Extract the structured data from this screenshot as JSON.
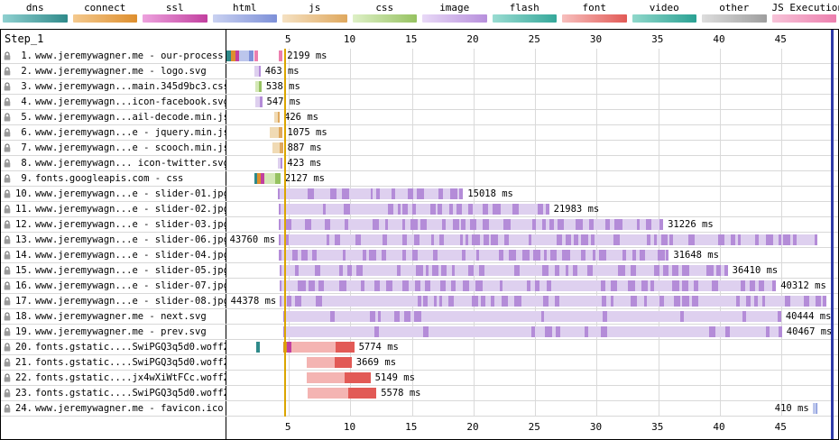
{
  "legend": {
    "items": [
      {
        "label": "dns",
        "light": "#8fd0d0",
        "dark": "#2f8a8a"
      },
      {
        "label": "connect",
        "light": "#f4c98e",
        "dark": "#de8f2e"
      },
      {
        "label": "ssl",
        "light": "#eda2de",
        "dark": "#c2409f"
      },
      {
        "label": "html",
        "light": "#c9d1f1",
        "dark": "#7d90d8"
      },
      {
        "label": "js",
        "light": "#f5e1c2",
        "dark": "#dfa85e"
      },
      {
        "label": "css",
        "light": "#def0c6",
        "dark": "#96c261"
      },
      {
        "label": "image",
        "light": "#e8d9f7",
        "dark": "#b78fdc"
      },
      {
        "label": "flash",
        "light": "#9adcd2",
        "dark": "#35a89a"
      },
      {
        "label": "font",
        "light": "#f7bfbd",
        "dark": "#e25a56"
      },
      {
        "label": "video",
        "light": "#90d8cb",
        "dark": "#2aa193"
      },
      {
        "label": "other",
        "light": "#dddddd",
        "dark": "#9e9e9e"
      },
      {
        "label": "JS Execution",
        "light": "#f7c3d8",
        "dark": "#ec7fae"
      }
    ]
  },
  "palette": {
    "dns": "#2f8a8a",
    "conn": "#de8f2e",
    "ssl": "#c2409f",
    "htmlL": "#bcc6ec",
    "htmlD": "#7d90d8",
    "jsL": "#f0dab4",
    "jsD": "#dfa85e",
    "cssL": "#d4e8b6",
    "cssD": "#96c261",
    "imgL": "#ded0ef",
    "imgD": "#b48cd8",
    "fontL": "#f4b4b2",
    "fontD": "#e25a56",
    "exec": "#ec7fae",
    "grid": "#dadada",
    "marker_gold": "#dba500",
    "marker_blue": "#2f3ba8"
  },
  "chart": {
    "step_label": "Step_1",
    "axis_ticks": [
      5,
      10,
      15,
      20,
      25,
      30,
      35,
      40,
      45
    ],
    "time_max_ms": 49600,
    "markers": [
      {
        "name": "start-render",
        "t_ms": 4600,
        "color": "#dba500",
        "w": 2
      },
      {
        "name": "document-complete",
        "t_ms": 49050,
        "color": "#2f3ba8",
        "w": 3
      }
    ]
  },
  "requests": [
    {
      "num": "1.",
      "label": "www.jeremywagner.me - our-process",
      "time": "2199 ms",
      "segments": [
        {
          "s": 0,
          "e": 350,
          "c": "dns"
        },
        {
          "s": 350,
          "e": 700,
          "c": "conn"
        },
        {
          "s": 700,
          "e": 1050,
          "c": "ssl"
        },
        {
          "s": 1050,
          "e": 1850,
          "c": "htmlL"
        },
        {
          "s": 1850,
          "e": 2199,
          "c": "htmlD"
        },
        {
          "s": 2300,
          "e": 2560,
          "c": "exec"
        },
        {
          "s": 4280,
          "e": 4560,
          "c": "exec"
        }
      ]
    },
    {
      "num": "2.",
      "label": "www.jeremywagner.me - logo.svg",
      "time": "463 ms",
      "segments": [
        {
          "s": 2300,
          "e": 2620,
          "c": "imgL"
        },
        {
          "s": 2620,
          "e": 2763,
          "c": "imgD"
        }
      ]
    },
    {
      "num": "3.",
      "label": "www.jeremywagn...main.345d9bc3.css",
      "time": "538 ms",
      "segments": [
        {
          "s": 2310,
          "e": 2670,
          "c": "cssL"
        },
        {
          "s": 2670,
          "e": 2848,
          "c": "cssD"
        }
      ]
    },
    {
      "num": "4.",
      "label": "www.jeremywagn...icon-facebook.svg",
      "time": "547 ms",
      "segments": [
        {
          "s": 2350,
          "e": 2710,
          "c": "imgL"
        },
        {
          "s": 2710,
          "e": 2897,
          "c": "imgD"
        }
      ]
    },
    {
      "num": "5.",
      "label": "www.jeremywagn...ail-decode.min.js",
      "time": "426 ms",
      "segments": [
        {
          "s": 3900,
          "e": 4160,
          "c": "jsL"
        },
        {
          "s": 4160,
          "e": 4326,
          "c": "jsD"
        }
      ]
    },
    {
      "num": "6.",
      "label": "www.jeremywagn...e - jquery.min.js",
      "time": "1075 ms",
      "segments": [
        {
          "s": 3500,
          "e": 4220,
          "c": "jsL"
        },
        {
          "s": 4220,
          "e": 4575,
          "c": "jsD"
        }
      ]
    },
    {
      "num": "7.",
      "label": "www.jeremywagn...e - scooch.min.js",
      "time": "887 ms",
      "segments": [
        {
          "s": 3700,
          "e": 4310,
          "c": "jsL"
        },
        {
          "s": 4310,
          "e": 4587,
          "c": "jsD"
        }
      ]
    },
    {
      "num": "8.",
      "label": "www.jeremywagn... icon-twitter.svg",
      "time": "423 ms",
      "segments": [
        {
          "s": 4150,
          "e": 4410,
          "c": "imgL"
        },
        {
          "s": 4410,
          "e": 4573,
          "c": "imgD"
        }
      ]
    },
    {
      "num": "9.",
      "label": "fonts.googleapis.com - css",
      "time": "2127 ms",
      "segments": [
        {
          "s": 2250,
          "e": 2520,
          "c": "dns"
        },
        {
          "s": 2520,
          "e": 2800,
          "c": "conn"
        },
        {
          "s": 2800,
          "e": 3100,
          "c": "ssl"
        },
        {
          "s": 3100,
          "e": 3960,
          "c": "cssL"
        },
        {
          "s": 3960,
          "e": 4377,
          "c": "cssD"
        }
      ]
    },
    {
      "num": "10.",
      "label": "www.jeremywagn...e - slider-01.jpg",
      "time": "15018 ms",
      "chunks": "dense",
      "segments": [
        {
          "s": 4200,
          "e": 19218,
          "c": "imgL"
        }
      ]
    },
    {
      "num": "11.",
      "label": "www.jeremywagn...e - slider-02.jpg",
      "time": "21983 ms",
      "chunks": "dense",
      "segments": [
        {
          "s": 4220,
          "e": 26203,
          "c": "imgL"
        }
      ]
    },
    {
      "num": "12.",
      "label": "www.jeremywagn...e - slider-03.jpg",
      "time": "31226 ms",
      "chunks": "dense",
      "segments": [
        {
          "s": 4240,
          "e": 35466,
          "c": "imgL"
        }
      ]
    },
    {
      "num": "13.",
      "label": "www.jeremywagn...e - slider-06.jpg",
      "time": "43760 ms",
      "side": "left",
      "chunks": "dense",
      "segments": [
        {
          "s": 4260,
          "e": 48020,
          "c": "imgL"
        }
      ]
    },
    {
      "num": "14.",
      "label": "www.jeremywagn...e - slider-04.jpg",
      "time": "31648 ms",
      "chunks": "dense",
      "segments": [
        {
          "s": 4280,
          "e": 35928,
          "c": "imgL"
        }
      ]
    },
    {
      "num": "15.",
      "label": "www.jeremywagn...e - slider-05.jpg",
      "time": "36410 ms",
      "chunks": "dense",
      "segments": [
        {
          "s": 4300,
          "e": 40710,
          "c": "imgL"
        }
      ]
    },
    {
      "num": "16.",
      "label": "www.jeremywagn...e - slider-07.jpg",
      "time": "40312 ms",
      "chunks": "dense",
      "segments": [
        {
          "s": 4320,
          "e": 44632,
          "c": "imgL"
        }
      ]
    },
    {
      "num": "17.",
      "label": "www.jeremywagn...e - slider-08.jpg",
      "time": "44378 ms",
      "side": "left",
      "chunks": "dense",
      "segments": [
        {
          "s": 4340,
          "e": 48718,
          "c": "imgL"
        }
      ]
    },
    {
      "num": "18.",
      "label": "www.jeremywagner.me - next.svg",
      "time": "40444 ms",
      "chunks": "sparse",
      "segments": [
        {
          "s": 4600,
          "e": 45044,
          "c": "imgL"
        }
      ]
    },
    {
      "num": "19.",
      "label": "www.jeremywagner.me - prev.svg",
      "time": "40467 ms",
      "chunks": "sparse",
      "segments": [
        {
          "s": 4650,
          "e": 45117,
          "c": "imgL"
        }
      ]
    },
    {
      "num": "20.",
      "label": "fonts.gstatic....SwiPGQ3q5d0.woff2",
      "time": "5774 ms",
      "segments": [
        {
          "s": 2400,
          "e": 2700,
          "c": "dns"
        },
        {
          "s": 4600,
          "e": 4920,
          "c": "conn"
        },
        {
          "s": 4920,
          "e": 5260,
          "c": "ssl"
        },
        {
          "s": 5260,
          "e": 8900,
          "c": "fontL"
        },
        {
          "s": 8900,
          "e": 10374,
          "c": "fontD"
        }
      ]
    },
    {
      "num": "21.",
      "label": "fonts.gstatic....SwiPGQ3q5d0.woff2",
      "time": "3669 ms",
      "segments": [
        {
          "s": 6500,
          "e": 8800,
          "c": "fontL"
        },
        {
          "s": 8800,
          "e": 10169,
          "c": "fontD"
        }
      ]
    },
    {
      "num": "22.",
      "label": "fonts.gstatic....jx4wXiWtFCc.woff2",
      "time": "5149 ms",
      "segments": [
        {
          "s": 6550,
          "e": 9600,
          "c": "fontL"
        },
        {
          "s": 9600,
          "e": 11699,
          "c": "fontD"
        }
      ]
    },
    {
      "num": "23.",
      "label": "fonts.gstatic....SwiPGQ3q5d0.woff2",
      "time": "5578 ms",
      "segments": [
        {
          "s": 6600,
          "e": 9900,
          "c": "fontL"
        },
        {
          "s": 9900,
          "e": 12178,
          "c": "fontD"
        }
      ]
    },
    {
      "num": "24.",
      "label": "www.jeremywagner.me - favicon.ico",
      "time": "410 ms",
      "side": "left",
      "segments": [
        {
          "s": 47600,
          "e": 47890,
          "c": "htmlL"
        },
        {
          "s": 47890,
          "e": 48010,
          "c": "htmlD"
        }
      ]
    }
  ]
}
